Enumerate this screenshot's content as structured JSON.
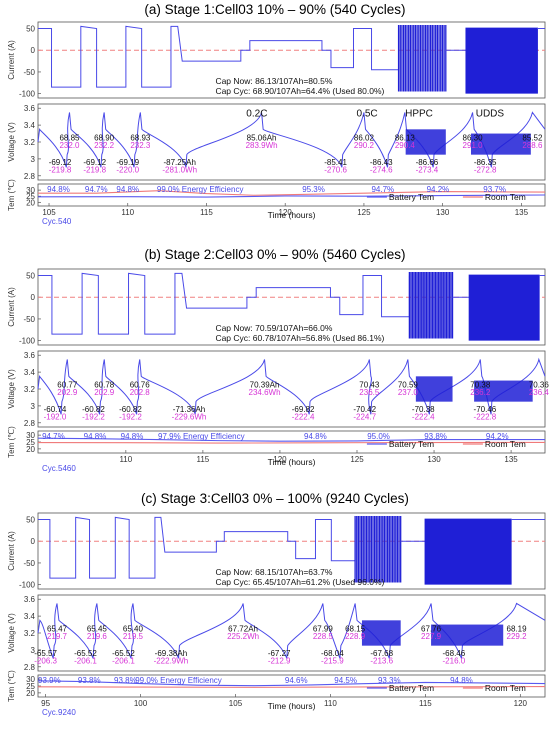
{
  "chart_data": [
    {
      "type": "line",
      "title": "(a) Stage 1:Cell03 10% – 90% (540 Cycles)",
      "xlabel": "Time (hours)",
      "xlim": [
        104.3,
        136.5
      ],
      "xticks": [
        105,
        110,
        115,
        120,
        125,
        130,
        135
      ],
      "cycle_label": "Cyc.540",
      "current": {
        "ylabel": "Current (A)",
        "ylim": [
          -110,
          65
        ],
        "yticks": [
          50,
          0,
          -50,
          -100
        ],
        "cap_now": "Cap Now: 86.13/107Ah=80.5%",
        "cap_cyc": "Cap Cyc: 68.90/107Ah=64.4% (Used 80.0%)",
        "hppc": [
          127.2,
          130.2
        ],
        "udds": [
          131.5,
          136.0
        ]
      },
      "voltage": {
        "ylabel": "Voltage (V)",
        "ylim": [
          2.75,
          3.65
        ],
        "yticks": [
          3.6,
          3.4,
          3.2,
          3.0,
          2.8
        ],
        "tags": [
          {
            "text": "0.2C",
            "x": 118.2,
            "y": 3.5
          },
          {
            "text": "0.5C",
            "x": 125.2,
            "y": 3.5
          },
          {
            "text": "HPPC",
            "x": 128.5,
            "y": 3.5
          },
          {
            "text": "UDDS",
            "x": 133.0,
            "y": 3.5
          }
        ],
        "charge_labels": [
          {
            "x": 106.3,
            "ah": "68.85",
            "wh": "232.0"
          },
          {
            "x": 108.5,
            "ah": "68.90",
            "wh": "232.2"
          },
          {
            "x": 110.8,
            "ah": "68.93",
            "wh": "232.3"
          },
          {
            "x": 118.5,
            "ah": "85.06Ah",
            "wh": "283.9Wh"
          },
          {
            "x": 125.0,
            "ah": "86.02",
            "wh": "290.2"
          },
          {
            "x": 127.6,
            "ah": "86.13",
            "wh": "290.4"
          },
          {
            "x": 131.9,
            "ah": "86.30",
            "wh": "291.0"
          },
          {
            "x": 135.7,
            "ah": "85.52",
            "wh": "288.6"
          }
        ],
        "discharge_labels": [
          {
            "x": 105.7,
            "ah": "-69.12",
            "wh": "-219.8"
          },
          {
            "x": 107.9,
            "ah": "-69.12",
            "wh": "-219.8"
          },
          {
            "x": 110.0,
            "ah": "-69.19",
            "wh": "-220.0"
          },
          {
            "x": 113.3,
            "ah": "-87.25Ah",
            "wh": "-281.0Wh"
          },
          {
            "x": 123.2,
            "ah": "-85.41",
            "wh": "-270.6"
          },
          {
            "x": 126.1,
            "ah": "-86.43",
            "wh": "-274.6"
          },
          {
            "x": 129.0,
            "ah": "-86.66",
            "wh": "-273.4"
          },
          {
            "x": 132.7,
            "ah": "-86.35",
            "wh": "-272.8"
          }
        ],
        "efficiency": [
          {
            "x": 105.6,
            "v": "94.8%"
          },
          {
            "x": 108.0,
            "v": "94.7%"
          },
          {
            "x": 110.0,
            "v": "94.8%"
          },
          {
            "x": 114.6,
            "v": "99.0% Energy Efficiency"
          },
          {
            "x": 121.8,
            "v": "95.3%"
          },
          {
            "x": 126.2,
            "v": "94.7%"
          },
          {
            "x": 129.7,
            "v": "94.2%"
          },
          {
            "x": 133.3,
            "v": "93.7%"
          }
        ]
      },
      "temperature": {
        "ylabel": "Tem (℃)",
        "ylim": [
          17,
          35
        ],
        "yticks": [
          30,
          25,
          20
        ],
        "series": [
          {
            "name": "Battery Tem",
            "color": "#5a5af0",
            "points": [
              [
                104.3,
                24.5
              ],
              [
                110,
                24.6
              ],
              [
                115,
                24.3
              ],
              [
                120,
                25.2
              ],
              [
                125,
                25.0
              ],
              [
                130,
                25.5
              ],
              [
                136.5,
                26.0
              ]
            ]
          },
          {
            "name": "Room Tem",
            "color": "#f07a7a",
            "points": [
              [
                104.3,
                27.5
              ],
              [
                108,
                27.5
              ],
              [
                112,
                29.5
              ],
              [
                115,
                27.2
              ],
              [
                118,
                25.8
              ],
              [
                121,
                26.5
              ],
              [
                125,
                27.5
              ],
              [
                130,
                28.8
              ],
              [
                136.5,
                28.4
              ]
            ]
          }
        ]
      }
    },
    {
      "type": "line",
      "title": "(b) Stage 2:Cell03 0% – 90% (5460 Cycles)",
      "xlabel": "Time (hours)",
      "xlim": [
        104.3,
        137.2
      ],
      "xticks": [
        110,
        115,
        120,
        125,
        130,
        135
      ],
      "cycle_label": "Cyc.5460",
      "current": {
        "ylabel": "Current (A)",
        "ylim": [
          -110,
          65
        ],
        "yticks": [
          50,
          0,
          -50,
          -100
        ],
        "cap_now": "Cap Now: 70.59/107Ah=66.0%",
        "cap_cyc": "Cap Cyc: 60.78/107Ah=56.8% (Used 86.1%)",
        "hppc": [
          128.4,
          131.2
        ],
        "udds": [
          132.3,
          136.8
        ]
      },
      "voltage": {
        "ylabel": "Voltage (V)",
        "ylim": [
          2.75,
          3.65
        ],
        "yticks": [
          3.6,
          3.4,
          3.2,
          3.0,
          2.8
        ],
        "tags": [],
        "charge_labels": [
          {
            "x": 106.2,
            "ah": "60.77",
            "wh": "202.9"
          },
          {
            "x": 108.6,
            "ah": "60.78",
            "wh": "202.9"
          },
          {
            "x": 110.9,
            "ah": "60.76",
            "wh": "202.8"
          },
          {
            "x": 119.0,
            "ah": "70.39Ah",
            "wh": "234.6Wh"
          },
          {
            "x": 125.8,
            "ah": "70.43",
            "wh": "236.5"
          },
          {
            "x": 128.3,
            "ah": "70.59",
            "wh": "237.0"
          },
          {
            "x": 133.0,
            "ah": "70.38",
            "wh": "236.2"
          },
          {
            "x": 136.8,
            "ah": "70.36",
            "wh": "236.4"
          }
        ],
        "discharge_labels": [
          {
            "x": 105.4,
            "ah": "-60.74",
            "wh": "-192.0"
          },
          {
            "x": 107.9,
            "ah": "-60.82",
            "wh": "-192.2"
          },
          {
            "x": 110.3,
            "ah": "-60.82",
            "wh": "-192.2"
          },
          {
            "x": 114.1,
            "ah": "-71.36Ah",
            "wh": "-229.6Wh"
          },
          {
            "x": 121.5,
            "ah": "-69.82",
            "wh": "-222.4"
          },
          {
            "x": 125.5,
            "ah": "-70.42",
            "wh": "-224.7"
          },
          {
            "x": 129.3,
            "ah": "-70.38",
            "wh": "-222.4"
          },
          {
            "x": 133.3,
            "ah": "-70.46",
            "wh": "-222.8"
          }
        ],
        "efficiency": [
          {
            "x": 105.3,
            "v": "94.7%"
          },
          {
            "x": 108.0,
            "v": "94.8%"
          },
          {
            "x": 110.4,
            "v": "94.8%"
          },
          {
            "x": 114.9,
            "v": "97.9% Energy Efficiency"
          },
          {
            "x": 122.3,
            "v": "94.8%"
          },
          {
            "x": 126.4,
            "v": "95.0%"
          },
          {
            "x": 130.1,
            "v": "93.8%"
          },
          {
            "x": 134.1,
            "v": "94.2%"
          }
        ]
      },
      "temperature": {
        "ylabel": "Tem (℃)",
        "ylim": [
          17,
          33
        ],
        "yticks": [
          30,
          25,
          20
        ],
        "series": [
          {
            "name": "Battery Tem",
            "color": "#5a5af0",
            "points": [
              [
                104.3,
                27.8
              ],
              [
                108,
                27.4
              ],
              [
                112,
                26.8
              ],
              [
                116,
                26.0
              ],
              [
                120,
                25.6
              ],
              [
                125,
                25.8
              ],
              [
                130,
                26.8
              ],
              [
                137.2,
                26.8
              ]
            ]
          },
          {
            "name": "Room Tem",
            "color": "#f07a7a",
            "points": [
              [
                104.3,
                24.6
              ],
              [
                110,
                24.5
              ],
              [
                116,
                24.2
              ],
              [
                122,
                24.4
              ],
              [
                128,
                24.6
              ],
              [
                137.2,
                24.7
              ]
            ]
          }
        ]
      }
    },
    {
      "type": "line",
      "title": "(c) Stage 3:Cell03 0% – 100% (9240 Cycles)",
      "xlabel": "Time (hours)",
      "xlim": [
        94.6,
        121.3
      ],
      "xticks": [
        95,
        100,
        105,
        110,
        115,
        120
      ],
      "cycle_label": "Cyc.9240",
      "current": {
        "ylabel": "Current (A)",
        "ylim": [
          -110,
          65
        ],
        "yticks": [
          50,
          0,
          -50,
          -100
        ],
        "cap_now": "Cap Now: 68.15/107Ah=63.7%",
        "cap_cyc": "Cap Cyc: 65.45/107Ah=61.2% (Used 96.0%)",
        "hppc": [
          111.3,
          113.7
        ],
        "udds": [
          115.0,
          119.5
        ]
      },
      "voltage": {
        "ylabel": "Voltage (V)",
        "ylim": [
          2.75,
          3.65
        ],
        "yticks": [
          3.6,
          3.4,
          3.2,
          3.0,
          2.8
        ],
        "tags": [],
        "charge_labels": [
          {
            "x": 95.6,
            "ah": "65.47",
            "wh": "219.7"
          },
          {
            "x": 97.7,
            "ah": "65.45",
            "wh": "219.6"
          },
          {
            "x": 99.6,
            "ah": "65.40",
            "wh": "219.5"
          },
          {
            "x": 105.4,
            "ah": "67.72Ah",
            "wh": "225.2Wh"
          },
          {
            "x": 109.6,
            "ah": "67.99",
            "wh": "228.5"
          },
          {
            "x": 111.3,
            "ah": "68.15",
            "wh": "228.9"
          },
          {
            "x": 115.3,
            "ah": "67.76",
            "wh": "227.9"
          },
          {
            "x": 119.8,
            "ah": "68.19",
            "wh": "229.2"
          }
        ],
        "discharge_labels": [
          {
            "x": 95.0,
            "ah": "-65.57",
            "wh": "-206.3"
          },
          {
            "x": 97.1,
            "ah": "-65.52",
            "wh": "-206.1"
          },
          {
            "x": 99.1,
            "ah": "-65.52",
            "wh": "-206.1"
          },
          {
            "x": 101.6,
            "ah": "-69.38Ah",
            "wh": "-222.9Wh"
          },
          {
            "x": 107.3,
            "ah": "-67.27",
            "wh": "-212.9"
          },
          {
            "x": 110.1,
            "ah": "-68.04",
            "wh": "-215.9"
          },
          {
            "x": 112.7,
            "ah": "-67.68",
            "wh": "-213.6"
          },
          {
            "x": 116.5,
            "ah": "-68.46",
            "wh": "-216.0"
          }
        ],
        "efficiency": [
          {
            "x": 95.2,
            "v": "93.9%"
          },
          {
            "x": 97.3,
            "v": "93.8%"
          },
          {
            "x": 99.2,
            "v": "93.8%"
          },
          {
            "x": 102.0,
            "v": "99.0% Energy Efficiency"
          },
          {
            "x": 108.2,
            "v": "94.6%"
          },
          {
            "x": 110.8,
            "v": "94.5%"
          },
          {
            "x": 113.1,
            "v": "93.3%"
          },
          {
            "x": 116.9,
            "v": "94.8%"
          }
        ]
      },
      "temperature": {
        "ylabel": "Tem (℃)",
        "ylim": [
          17,
          33
        ],
        "yticks": [
          30,
          25,
          20
        ],
        "series": [
          {
            "name": "Battery Tem",
            "color": "#5a5af0",
            "points": [
              [
                94.6,
                28.8
              ],
              [
                97,
                28.2
              ],
              [
                100,
                26.8
              ],
              [
                103,
                25.6
              ],
              [
                106,
                25.2
              ],
              [
                109,
                25.8
              ],
              [
                112,
                26.8
              ],
              [
                115,
                27.6
              ],
              [
                118,
                27.2
              ],
              [
                121.3,
                26.8
              ]
            ]
          },
          {
            "name": "Room Tem",
            "color": "#f07a7a",
            "points": [
              [
                94.6,
                24.4
              ],
              [
                100,
                24.2
              ],
              [
                106,
                24.0
              ],
              [
                112,
                24.3
              ],
              [
                121.3,
                24.6
              ]
            ]
          }
        ]
      }
    }
  ]
}
